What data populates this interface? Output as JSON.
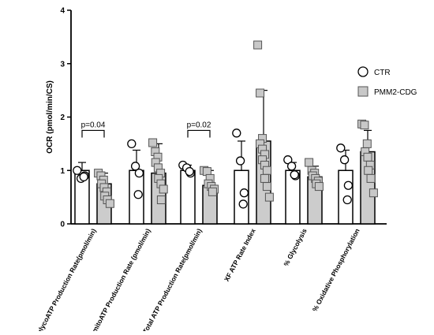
{
  "chart_data": {
    "type": "bar",
    "ylabel": "OCR (pmol/min/CS)",
    "ylim": [
      0,
      4
    ],
    "yticks": [
      "0",
      "1",
      "2",
      "3",
      "4"
    ],
    "categories": [
      "glycoATP Production Rate(pmol/min)",
      "mitoATP Production Rate (pmol/min)",
      "Total ATP Production Rate(pmol/min)",
      "XF ATP Rate Index",
      "% Glycolysis",
      "% Oxidative Phosphorylation"
    ],
    "series": [
      {
        "name": "CTR",
        "marker": "circle",
        "bar_color": "#ffffff",
        "values": [
          1.0,
          1.0,
          1.0,
          1.0,
          1.0,
          1.0
        ],
        "sd": [
          0.15,
          0.38,
          0.1,
          0.55,
          0.15,
          0.38
        ],
        "points": [
          [
            1.0,
            0.85,
            0.9,
            0.88
          ],
          [
            1.5,
            1.08,
            0.95,
            0.55
          ],
          [
            1.1,
            1.05,
            0.95,
            0.98
          ],
          [
            1.7,
            1.18,
            0.58,
            0.37
          ],
          [
            1.2,
            1.08,
            0.9,
            0.92
          ],
          [
            1.42,
            1.2,
            0.72,
            0.45
          ]
        ]
      },
      {
        "name": "PMM2-CDG",
        "marker": "square",
        "bar_color": "#cccccc",
        "values": [
          0.75,
          0.95,
          0.72,
          1.55,
          0.88,
          1.35
        ],
        "sd": [
          0.2,
          0.55,
          0.28,
          0.95,
          0.2,
          0.4
        ],
        "points": [
          [
            0.95,
            0.9,
            0.82,
            0.75,
            0.68,
            0.6,
            0.52,
            0.45,
            0.38
          ],
          [
            1.52,
            1.35,
            1.25,
            1.15,
            1.05,
            0.95,
            0.85,
            0.75,
            0.65,
            0.45
          ],
          [
            1.0,
            0.98,
            0.85,
            0.75,
            0.7,
            0.65,
            0.6
          ],
          [
            3.35,
            2.45,
            1.6,
            1.5,
            1.4,
            1.3,
            1.2,
            1.1,
            1.0,
            0.85,
            0.7,
            0.5
          ],
          [
            1.15,
            1.0,
            0.95,
            0.9,
            0.85,
            0.8,
            0.75,
            0.7
          ],
          [
            1.87,
            1.85,
            1.5,
            1.35,
            1.25,
            1.1,
            1.0,
            0.85,
            0.58
          ]
        ]
      }
    ],
    "annotations": [
      {
        "text": "p=0.04",
        "category": 0
      },
      {
        "text": "p=0.02",
        "category": 2
      }
    ],
    "legend": {
      "position": "right"
    },
    "grid": false
  }
}
